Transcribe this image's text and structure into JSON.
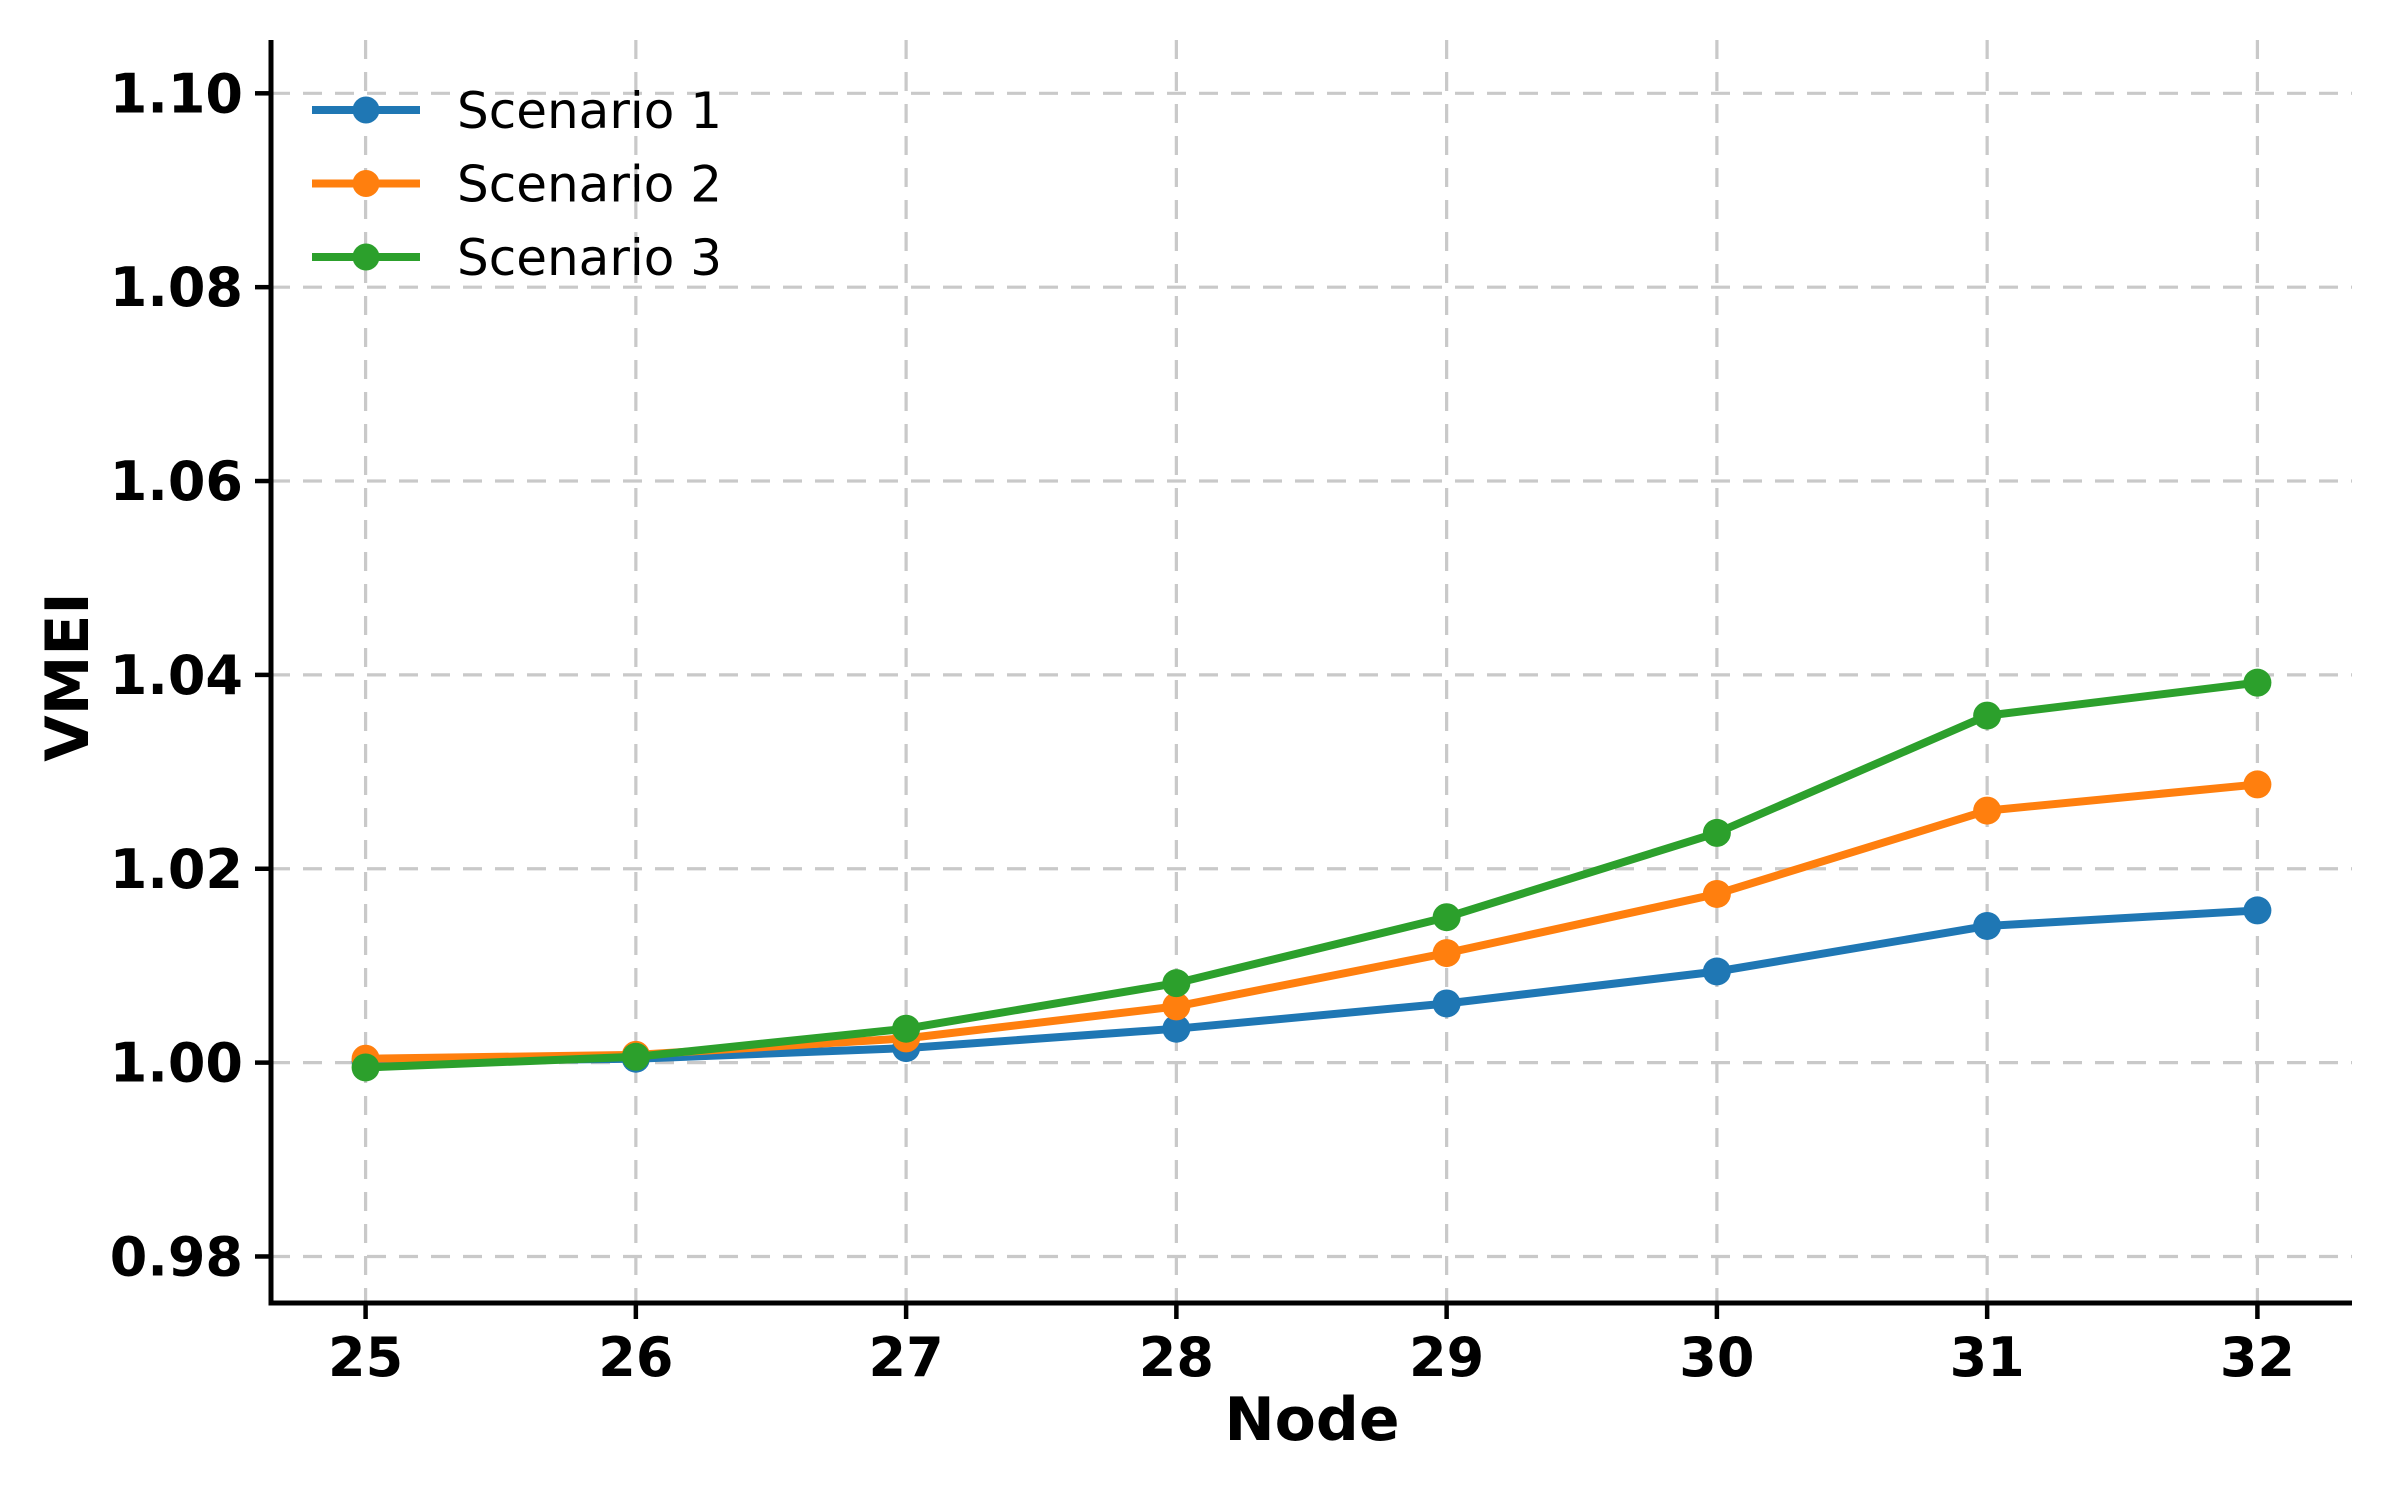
{
  "figure": {
    "background": "#ffffff",
    "text_color": "#000000",
    "grid_color": "#c9c9c9"
  },
  "chart_data": {
    "type": "line",
    "title": "",
    "xlabel": "Node",
    "ylabel": "VMEI",
    "x": [
      25,
      26,
      27,
      28,
      29,
      30,
      31,
      32
    ],
    "xticklabels": [
      "25",
      "26",
      "27",
      "28",
      "29",
      "30",
      "31",
      "32"
    ],
    "yticks": [
      0.98,
      1.0,
      1.02,
      1.04,
      1.06,
      1.08,
      1.1
    ],
    "yticklabels": [
      "0.98",
      "1.00",
      "1.02",
      "1.04",
      "1.06",
      "1.08",
      "1.10"
    ],
    "xlim": [
      24.65,
      32.35
    ],
    "ylim": [
      0.9752,
      1.1055
    ],
    "grid": true,
    "grid_style": "dashed",
    "legend_position": "upper left",
    "series": [
      {
        "name": "Scenario 1",
        "color": "#1f77b4",
        "marker": "circle",
        "values": [
          1.0001,
          1.0004,
          1.0015,
          1.0035,
          1.0061,
          1.0094,
          1.0141,
          1.0157
        ]
      },
      {
        "name": "Scenario 2",
        "color": "#ff7f0e",
        "marker": "circle",
        "values": [
          1.0004,
          1.0008,
          1.0025,
          1.0058,
          1.0113,
          1.0174,
          1.026,
          1.0287
        ]
      },
      {
        "name": "Scenario 3",
        "color": "#2ca02c",
        "marker": "circle",
        "values": [
          0.9995,
          1.0006,
          1.0035,
          1.0082,
          1.015,
          1.0237,
          1.0358,
          1.0392
        ]
      }
    ]
  }
}
